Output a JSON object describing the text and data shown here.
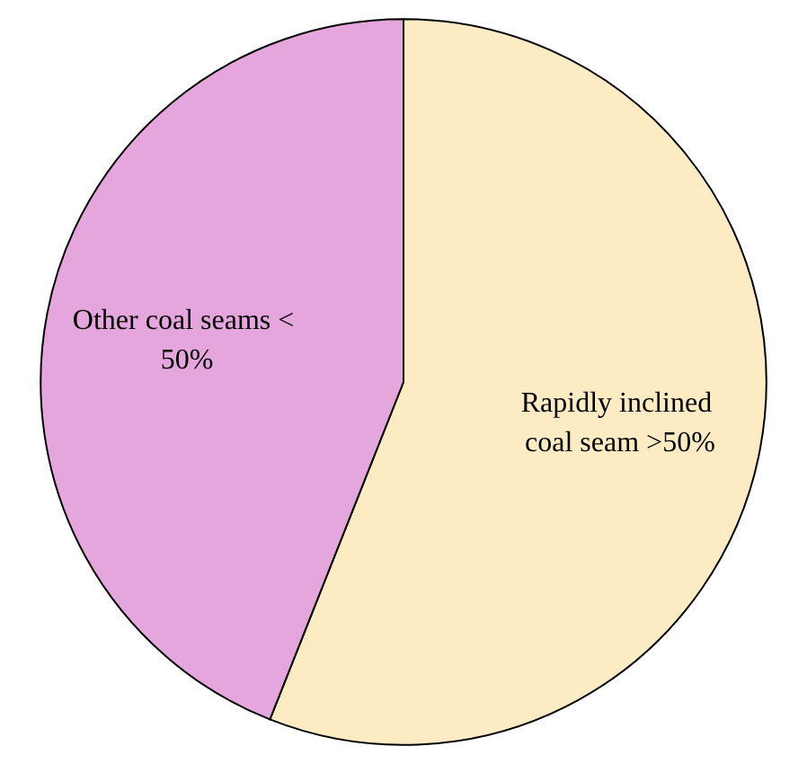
{
  "chart_data": {
    "type": "pie",
    "categories": [
      "Rapidly inclined coal seam >50%",
      "Other coal seams < 50%"
    ],
    "values": [
      56,
      44
    ],
    "colors": [
      "#fdebc4",
      "#e4a6dc"
    ],
    "legend": false
  }
}
